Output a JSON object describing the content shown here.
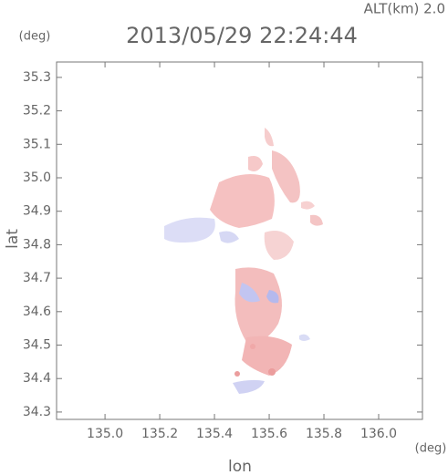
{
  "chart_data": {
    "type": "map",
    "title": "2013/05/29 22:24:44",
    "annotation": "ALT(km)  2.0",
    "x_label": "lon",
    "y_label": "lat",
    "x_unit": "(deg)",
    "y_unit": "(deg)",
    "xlim": [
      134.823,
      136.16
    ],
    "ylim": [
      34.278,
      35.346
    ],
    "xticks": [
      {
        "value": 135.0,
        "label": "135.0"
      },
      135.2,
      135.4,
      135.6,
      135.8,
      {
        "value": 136.0,
        "label": "136.0"
      }
    ],
    "yticks": [
      34.3,
      34.4,
      34.5,
      34.6,
      34.7,
      34.8,
      34.9,
      {
        "value": 35.0,
        "label": "35.0"
      },
      35.1,
      35.2,
      35.3
    ]
  }
}
